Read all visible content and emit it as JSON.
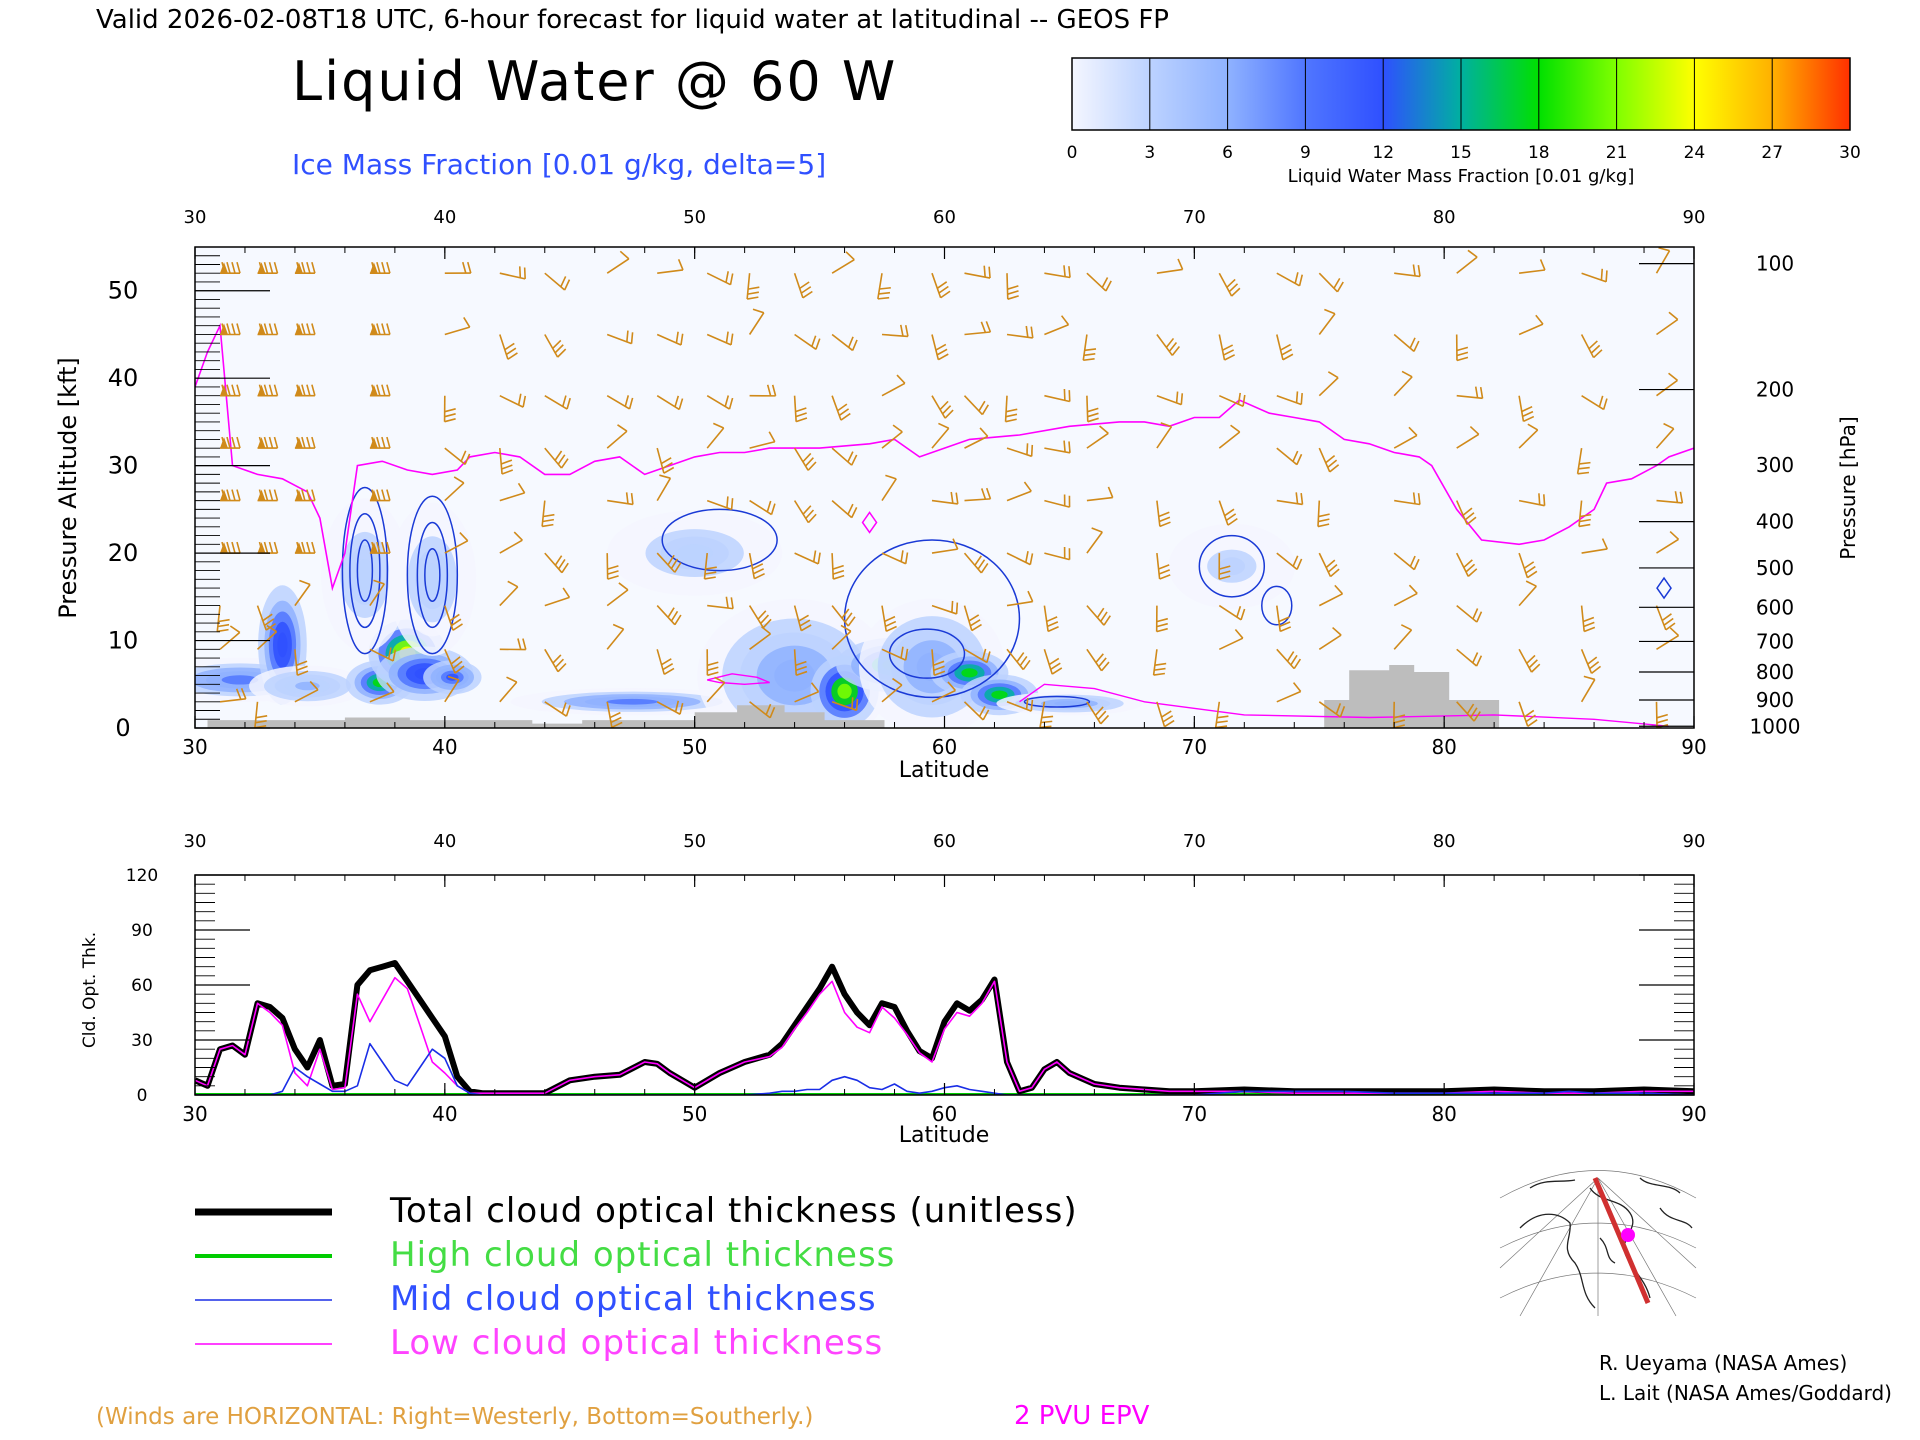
{
  "header": {
    "valid_line": "Valid 2026-02-08T18 UTC, 6-hour forecast for liquid water at latitudinal -- GEOS FP",
    "title": "Liquid Water @ 60 W",
    "subtitle": "Ice Mass Fraction [0.01 g/kg, delta=5]"
  },
  "colorbar": {
    "ticks": [
      "0",
      "3",
      "6",
      "9",
      "12",
      "15",
      "18",
      "21",
      "24",
      "27",
      "30"
    ],
    "label": "Liquid Water Mass Fraction [0.01 g/kg]",
    "colors": [
      "#f4f6ff",
      "#bcd2ff",
      "#8fb2ff",
      "#5076ff",
      "#2f50ff",
      "#00b0a0",
      "#00e000",
      "#80ff00",
      "#ffff00",
      "#ffb000",
      "#ff3000"
    ]
  },
  "colors": {
    "wind_barbs": "#d08a1a",
    "ice_contour": "#1a3ad6",
    "epv_line": "#ff00ff",
    "terrain": "#bdbdbd",
    "total_line": "#000000",
    "high_line": "#00cc00",
    "mid_line": "#1a2ee6",
    "low_line": "#ff00ff"
  },
  "chart_data": [
    {
      "type": "heatmap",
      "description_ref": "Liquid water cross-section",
      "xlabel": "Latitude",
      "ylabel": "Pressure Altitude [kft]",
      "ylabel_right": "Pressure [hPa]",
      "xlim": [
        30,
        90
      ],
      "ylim": [
        0,
        55
      ],
      "x_ticks": [
        "30",
        "40",
        "50",
        "60",
        "70",
        "80",
        "90"
      ],
      "y_ticks": [
        "0",
        "10",
        "20",
        "30",
        "40",
        "50"
      ],
      "pressure_ticks": [
        {
          "label": "100",
          "kft": 53.1
        },
        {
          "label": "200",
          "kft": 38.7
        },
        {
          "label": "300",
          "kft": 30.1
        },
        {
          "label": "400",
          "kft": 23.6
        },
        {
          "label": "500",
          "kft": 18.3
        },
        {
          "label": "600",
          "kft": 13.8
        },
        {
          "label": "700",
          "kft": 9.9
        },
        {
          "label": "800",
          "kft": 6.4
        },
        {
          "label": "900",
          "kft": 3.2
        },
        {
          "label": "1000",
          "kft": 0.2
        }
      ],
      "liquid_blobs": [
        {
          "lat": 31.8,
          "kft": 5.5,
          "peak": 9,
          "dlat": 1.8,
          "dkft": 1.3
        },
        {
          "lat": 33.5,
          "kft": 9.5,
          "peak": 14,
          "dlat": 0.5,
          "dkft": 3.5
        },
        {
          "lat": 34.5,
          "kft": 4.8,
          "peak": 5,
          "dlat": 1.2,
          "dkft": 1.2
        },
        {
          "lat": 37.4,
          "kft": 5.2,
          "peak": 19,
          "dlat": 0.7,
          "dkft": 1.3
        },
        {
          "lat": 38.5,
          "kft": 8.5,
          "peak": 27,
          "dlat": 0.8,
          "dkft": 2.0
        },
        {
          "lat": 39.2,
          "kft": 6.2,
          "peak": 14,
          "dlat": 1.0,
          "dkft": 1.6
        },
        {
          "lat": 40.3,
          "kft": 5.8,
          "peak": 13,
          "dlat": 0.6,
          "dkft": 1.0
        },
        {
          "lat": 47.5,
          "kft": 3.0,
          "peak": 9,
          "dlat": 2.5,
          "dkft": 0.8
        },
        {
          "lat": 54.0,
          "kft": 6.0,
          "peak": 6,
          "dlat": 2.0,
          "dkft": 4.5
        },
        {
          "lat": 56.0,
          "kft": 4.2,
          "peak": 24,
          "dlat": 0.7,
          "dkft": 2.1
        },
        {
          "lat": 58.0,
          "kft": 7.2,
          "peak": 19,
          "dlat": 1.2,
          "dkft": 1.6
        },
        {
          "lat": 59.5,
          "kft": 7.0,
          "peak": 8,
          "dlat": 1.5,
          "dkft": 4.0
        },
        {
          "lat": 61.0,
          "kft": 6.3,
          "peak": 18,
          "dlat": 0.8,
          "dkft": 1.3
        },
        {
          "lat": 62.2,
          "kft": 3.8,
          "peak": 19,
          "dlat": 0.8,
          "dkft": 1.2
        },
        {
          "lat": 65.0,
          "kft": 2.8,
          "peak": 6,
          "dlat": 1.5,
          "dkft": 0.7
        },
        {
          "lat": 36.8,
          "kft": 17.5,
          "peak": 4,
          "dlat": 0.9,
          "dkft": 4.5
        },
        {
          "lat": 39.5,
          "kft": 17.0,
          "peak": 4,
          "dlat": 0.9,
          "dkft": 4.5
        },
        {
          "lat": 50.0,
          "kft": 20.0,
          "peak": 3,
          "dlat": 1.8,
          "dkft": 2.5
        },
        {
          "lat": 71.5,
          "kft": 18.5,
          "peak": 2,
          "dlat": 1.3,
          "dkft": 2.5
        }
      ],
      "terrain_kft": [
        [
          30,
          0
        ],
        [
          30.5,
          0
        ],
        [
          30.5,
          0.9
        ],
        [
          36,
          0.9
        ],
        [
          36,
          1.2
        ],
        [
          38.6,
          1.2
        ],
        [
          38.6,
          0.9
        ],
        [
          43.5,
          0.9
        ],
        [
          43.5,
          0.5
        ],
        [
          45.5,
          0.5
        ],
        [
          45.5,
          0.9
        ],
        [
          50,
          0.9
        ],
        [
          50,
          1.8
        ],
        [
          51.7,
          1.8
        ],
        [
          51.7,
          2.6
        ],
        [
          53.6,
          2.6
        ],
        [
          53.6,
          1.8
        ],
        [
          55.2,
          1.8
        ],
        [
          55.2,
          0.9
        ],
        [
          57.6,
          0.9
        ],
        [
          57.6,
          0
        ],
        [
          75.2,
          0
        ],
        [
          75.2,
          3.2
        ],
        [
          76.2,
          3.2
        ],
        [
          76.2,
          6.6
        ],
        [
          77.8,
          6.6
        ],
        [
          77.8,
          7.2
        ],
        [
          78.8,
          7.2
        ],
        [
          78.8,
          6.4
        ],
        [
          80.2,
          6.4
        ],
        [
          80.2,
          3.2
        ],
        [
          82.2,
          3.2
        ],
        [
          82.2,
          0
        ],
        [
          90,
          0
        ]
      ],
      "epv_2pvu_kft": [
        [
          30,
          39
        ],
        [
          30.5,
          43
        ],
        [
          31,
          46
        ],
        [
          31.5,
          30
        ],
        [
          32.5,
          29
        ],
        [
          33.5,
          28.5
        ],
        [
          34.5,
          27
        ],
        [
          35,
          24
        ],
        [
          35.5,
          16
        ],
        [
          36,
          20
        ],
        [
          36.5,
          30
        ],
        [
          37.5,
          30.5
        ],
        [
          38.5,
          29.5
        ],
        [
          39.5,
          29
        ],
        [
          40.5,
          29.5
        ],
        [
          41,
          31
        ],
        [
          42,
          31.5
        ],
        [
          43,
          31
        ],
        [
          44,
          29
        ],
        [
          45,
          29
        ],
        [
          46,
          30.5
        ],
        [
          47,
          31
        ],
        [
          48,
          29
        ],
        [
          49,
          30
        ],
        [
          50,
          31
        ],
        [
          51,
          31.5
        ],
        [
          52,
          31.5
        ],
        [
          53,
          32
        ],
        [
          55,
          32
        ],
        [
          57,
          32.5
        ],
        [
          58,
          33
        ],
        [
          59,
          31
        ],
        [
          60,
          32
        ],
        [
          61,
          33
        ],
        [
          63,
          33.5
        ],
        [
          65,
          34.5
        ],
        [
          67,
          35
        ],
        [
          68,
          35
        ],
        [
          69,
          34.5
        ],
        [
          70,
          35.5
        ],
        [
          71,
          35.5
        ],
        [
          71.8,
          37.5
        ],
        [
          73,
          36
        ],
        [
          74,
          35.5
        ],
        [
          75,
          35
        ],
        [
          76,
          33
        ],
        [
          77,
          32.5
        ],
        [
          78,
          31.5
        ],
        [
          79,
          31
        ],
        [
          79.5,
          30
        ],
        [
          80.5,
          25
        ],
        [
          81.5,
          21.5
        ],
        [
          83,
          21
        ],
        [
          84,
          21.5
        ],
        [
          85,
          23
        ],
        [
          86,
          25
        ],
        [
          86.5,
          28
        ],
        [
          87.5,
          28.5
        ],
        [
          88.5,
          30
        ],
        [
          89,
          31
        ],
        [
          90,
          32
        ]
      ],
      "ice_contours": [
        {
          "lat": 36.8,
          "kft": 18.0,
          "rlat": 0.9,
          "rkft": 9.5,
          "level": 5
        },
        {
          "lat": 36.8,
          "kft": 18.0,
          "rlat": 0.6,
          "rkft": 6.5,
          "level": 10
        },
        {
          "lat": 36.8,
          "kft": 18.0,
          "rlat": 0.3,
          "rkft": 3.5,
          "level": 15
        },
        {
          "lat": 39.5,
          "kft": 17.5,
          "rlat": 1.0,
          "rkft": 9.0,
          "level": 5
        },
        {
          "lat": 39.5,
          "kft": 17.5,
          "rlat": 0.6,
          "rkft": 6.0,
          "level": 10
        },
        {
          "lat": 39.5,
          "kft": 17.5,
          "rlat": 0.3,
          "rkft": 3.0,
          "level": 15
        },
        {
          "lat": 51.0,
          "kft": 21.5,
          "rlat": 2.3,
          "rkft": 3.5,
          "level": 5
        },
        {
          "lat": 59.5,
          "kft": 12.5,
          "rlat": 3.5,
          "rkft": 9.0,
          "level": 5
        },
        {
          "lat": 59.3,
          "kft": 8.5,
          "rlat": 1.5,
          "rkft": 2.8,
          "level": 10
        },
        {
          "lat": 71.5,
          "kft": 18.5,
          "rlat": 1.3,
          "rkft": 3.5,
          "level": 5
        },
        {
          "lat": 73.3,
          "kft": 14.0,
          "rlat": 0.6,
          "rkft": 2.2,
          "level": 5
        },
        {
          "lat": 64.5,
          "kft": 3.0,
          "rlat": 1.3,
          "rkft": 0.6,
          "level": 5
        }
      ],
      "wind_columns_lat": [
        31,
        32.5,
        34,
        37,
        40,
        42.2,
        44,
        46.5,
        48.5,
        50.5,
        52.2,
        54,
        55.5,
        57.5,
        59.5,
        60.8,
        62.5,
        64,
        65.7,
        68.5,
        71,
        73.3,
        75,
        78,
        80.5,
        83,
        85.5,
        88.5
      ],
      "wind_levels_kft": [
        52,
        45,
        38,
        32,
        26,
        20,
        14,
        9,
        3
      ]
    },
    {
      "type": "line",
      "description_ref": "Cloud optical thickness",
      "xlabel": "Latitude",
      "ylabel": "Cld. Opt. Thk.",
      "xlim": [
        30,
        90
      ],
      "ylim": [
        0,
        120
      ],
      "x_ticks": [
        "30",
        "40",
        "50",
        "60",
        "70",
        "80",
        "90"
      ],
      "y_ticks": [
        "0",
        "30",
        "60",
        "90",
        "120"
      ],
      "x": [
        30,
        30.5,
        31,
        31.5,
        32,
        32.5,
        33,
        33.5,
        34,
        34.5,
        35,
        35.5,
        36,
        36.5,
        37,
        37.5,
        38,
        38.5,
        39,
        39.5,
        40,
        40.5,
        41,
        41.5,
        42,
        43,
        44,
        45,
        46,
        47,
        48,
        48.5,
        49,
        49.5,
        50,
        51,
        52,
        53,
        53.5,
        54,
        54.5,
        55,
        55.5,
        56,
        56.5,
        57,
        57.5,
        58,
        58.5,
        59,
        59.5,
        60,
        60.5,
        61,
        61.5,
        62,
        62.5,
        63,
        63.5,
        64,
        64.5,
        65,
        66,
        67,
        68,
        69,
        70,
        72,
        74,
        76,
        78,
        80,
        82,
        84,
        85,
        86,
        88,
        90
      ],
      "series": [
        {
          "name": "Total cloud optical thickness (unitless)",
          "key": "total",
          "values": [
            8,
            5,
            25,
            27,
            22,
            50,
            48,
            42,
            25,
            15,
            30,
            5,
            6,
            60,
            68,
            70,
            72,
            62,
            52,
            42,
            32,
            10,
            2,
            1,
            1,
            1,
            1,
            8,
            10,
            11,
            18,
            17,
            12,
            8,
            4,
            12,
            18,
            22,
            28,
            38,
            48,
            58,
            70,
            55,
            45,
            38,
            50,
            48,
            35,
            24,
            20,
            40,
            50,
            46,
            52,
            63,
            18,
            2,
            4,
            14,
            18,
            12,
            6,
            4,
            3,
            2,
            2,
            3,
            2,
            2,
            2,
            2,
            3,
            2,
            2,
            2,
            3,
            2
          ],
          "width": 6
        },
        {
          "name": "High cloud optical thickness",
          "key": "high",
          "values": [
            0,
            0,
            0,
            0,
            0,
            0,
            0,
            0,
            0,
            0,
            0,
            0,
            0,
            0,
            0,
            0,
            0,
            0,
            0,
            0,
            0,
            0,
            0,
            0,
            0,
            0,
            0,
            0,
            0,
            0,
            0,
            0,
            0,
            0,
            0,
            0,
            0,
            0,
            0,
            0,
            0,
            0,
            0,
            0,
            0,
            0,
            0,
            0,
            0,
            0,
            0,
            0,
            0,
            0,
            0,
            0,
            0,
            0,
            0,
            0,
            0,
            0,
            0,
            0,
            0,
            0,
            0,
            0,
            0,
            0,
            0,
            0,
            0,
            0,
            0,
            0,
            0,
            0
          ],
          "width": 4
        },
        {
          "name": "Mid cloud optical thickness",
          "key": "mid",
          "values": [
            0,
            0,
            0,
            0,
            0,
            0,
            0,
            2,
            15,
            10,
            6,
            2,
            2,
            5,
            28,
            18,
            8,
            5,
            15,
            25,
            20,
            5,
            1,
            0,
            0,
            0,
            0,
            0,
            0,
            0,
            0,
            0,
            0,
            0,
            0,
            0,
            0,
            1,
            2,
            2,
            3,
            3,
            8,
            10,
            8,
            4,
            3,
            6,
            2,
            1,
            2,
            4,
            5,
            3,
            2,
            1,
            0,
            0,
            0,
            0,
            0,
            0,
            0,
            0,
            0,
            0,
            0,
            2,
            2,
            2,
            1,
            1,
            1,
            1,
            2,
            1,
            1,
            0
          ],
          "width": 1.6
        },
        {
          "name": "Low cloud optical thickness",
          "key": "low",
          "values": [
            8,
            5,
            25,
            27,
            22,
            50,
            45,
            38,
            12,
            5,
            25,
            3,
            4,
            55,
            40,
            52,
            64,
            58,
            38,
            18,
            12,
            5,
            1,
            1,
            1,
            1,
            1,
            8,
            10,
            11,
            18,
            17,
            12,
            8,
            4,
            12,
            18,
            21,
            26,
            36,
            45,
            55,
            62,
            45,
            37,
            34,
            48,
            42,
            33,
            23,
            18,
            36,
            45,
            43,
            50,
            62,
            18,
            2,
            4,
            14,
            18,
            12,
            6,
            4,
            3,
            2,
            2,
            2,
            1,
            1,
            1,
            1,
            2,
            1,
            1,
            1,
            2,
            2
          ],
          "width": 1.6
        }
      ]
    }
  ],
  "legend": {
    "items": [
      {
        "label": "Total cloud optical thickness (unitless)",
        "key": "total"
      },
      {
        "label": "High cloud optical thickness",
        "key": "high"
      },
      {
        "label": "Mid cloud optical thickness",
        "key": "mid"
      },
      {
        "label": "Low cloud optical thickness",
        "key": "low"
      }
    ]
  },
  "footer": {
    "winds_note": "(Winds are HORIZONTAL: Right=Westerly, Bottom=Southerly.)",
    "epv_label": "2 PVU EPV",
    "credit1": "R. Ueyama (NASA Ames)",
    "credit2": "L. Lait (NASA Ames/Goddard)"
  }
}
